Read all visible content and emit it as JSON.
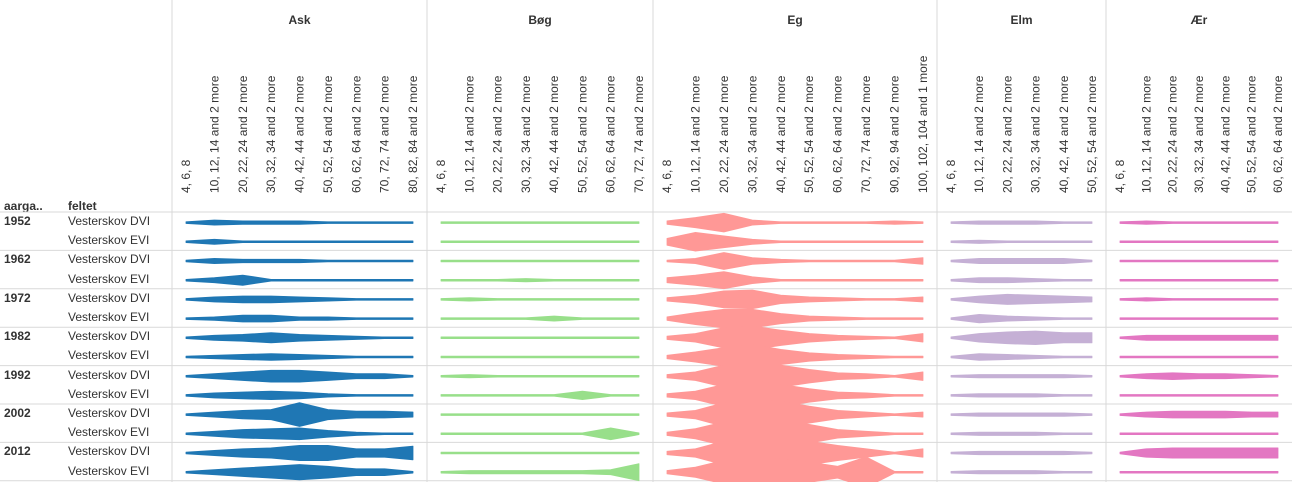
{
  "row_headers": {
    "year_label": "aarga..",
    "field_label": "feltet"
  },
  "colors": {
    "Ask": "#1f77b4",
    "Bøg": "#98df8a",
    "Eg": "#ff9896",
    "Elm": "#c5b0d5",
    "Ær": "#e377c2",
    "grid": "#d9d9d9"
  },
  "chart_data": {
    "type": "area",
    "species": [
      {
        "name": "Ask",
        "classes": [
          "4, 6, 8",
          "10, 12, 14 and 2 more",
          "20, 22, 24 and 2 more",
          "30, 32, 34 and 2 more",
          "40, 42, 44 and 2 more",
          "50, 52, 54 and 2 more",
          "60, 62, 64 and 2 more",
          "70, 72, 74 and 2 more",
          "80, 82, 84 and 2 more"
        ]
      },
      {
        "name": "Bøg",
        "classes": [
          "4, 6, 8",
          "10, 12, 14 and 2 more",
          "20, 22, 24 and 2 more",
          "30, 32, 34 and 2 more",
          "40, 42, 44 and 2 more",
          "50, 52, 54 and 2 more",
          "60, 62, 64 and 2 more",
          "70, 72, 74 and 2 more"
        ]
      },
      {
        "name": "Eg",
        "classes": [
          "4, 6, 8",
          "10, 12, 14 and 2 more",
          "20, 22, 24 and 2 more",
          "30, 32, 34 and 2 more",
          "40, 42, 44 and 2 more",
          "50, 52, 54 and 2 more",
          "60, 62, 64 and 2 more",
          "70, 72, 74 and 2 more",
          "90, 92, 94 and 2 more",
          "100, 102, 104 and 1 more"
        ]
      },
      {
        "name": "Elm",
        "classes": [
          "4, 6, 8",
          "10, 12, 14 and 2 more",
          "20, 22, 24 and 2 more",
          "30, 32, 34 and 2 more",
          "40, 42, 44 and 2 more",
          "50, 52, 54 and 2 more"
        ]
      },
      {
        "name": "Ær",
        "classes": [
          "4, 6, 8",
          "10, 12, 14 and 2 more",
          "20, 22, 24 and 2 more",
          "30, 32, 34 and 2 more",
          "40, 42, 44 and 2 more",
          "50, 52, 54 and 2 more",
          "60, 62, 64 and 2 more"
        ]
      }
    ],
    "years": [
      "1952",
      "1962",
      "1972",
      "1982",
      "1992",
      "2002",
      "2012"
    ],
    "fields": [
      "Vesterskov DVI",
      "Vesterskov EVI"
    ],
    "values": {
      "Ask": [
        [
          [
            1,
            3,
            2,
            2,
            2,
            1,
            1,
            1,
            1
          ],
          [
            1,
            3,
            1,
            1,
            1,
            1,
            1,
            1,
            1
          ]
        ],
        [
          [
            1,
            3,
            2,
            2,
            2,
            1,
            1,
            1,
            1
          ],
          [
            1,
            3,
            6,
            1,
            1,
            1,
            1,
            1,
            1
          ]
        ],
        [
          [
            1,
            3,
            4,
            4,
            3,
            2,
            1,
            1,
            1
          ],
          [
            1,
            2,
            4,
            4,
            2,
            2,
            1,
            1,
            1
          ]
        ],
        [
          [
            1,
            3,
            4,
            6,
            4,
            3,
            2,
            1,
            1
          ],
          [
            1,
            2,
            3,
            4,
            3,
            2,
            1,
            1,
            1
          ]
        ],
        [
          [
            1,
            3,
            5,
            7,
            7,
            5,
            3,
            3,
            1
          ],
          [
            1,
            3,
            4,
            5,
            4,
            2,
            1,
            1,
            1
          ]
        ],
        [
          [
            1,
            3,
            5,
            6,
            14,
            6,
            4,
            4,
            3
          ],
          [
            1,
            3,
            5,
            6,
            7,
            4,
            2,
            1,
            1
          ]
        ],
        [
          [
            1,
            3,
            5,
            6,
            9,
            9,
            5,
            5,
            8
          ],
          [
            1,
            3,
            5,
            7,
            9,
            7,
            4,
            4,
            1
          ]
        ]
      ],
      "Bøg": [
        [
          [
            1,
            1,
            1,
            1,
            1,
            1,
            1,
            1
          ],
          [
            1,
            1,
            1,
            1,
            1,
            1,
            1,
            1
          ]
        ],
        [
          [
            1,
            1,
            1,
            1,
            1,
            1,
            1,
            1
          ],
          [
            1,
            1,
            1,
            2,
            1,
            1,
            1,
            1
          ]
        ],
        [
          [
            1,
            2,
            1,
            1,
            1,
            1,
            1,
            1
          ],
          [
            1,
            1,
            1,
            1,
            3,
            1,
            1,
            1
          ]
        ],
        [
          [
            1,
            1,
            1,
            1,
            1,
            1,
            1,
            1
          ],
          [
            1,
            1,
            1,
            1,
            1,
            1,
            1,
            1
          ]
        ],
        [
          [
            1,
            2,
            1,
            1,
            1,
            1,
            1,
            1
          ],
          [
            1,
            1,
            1,
            1,
            1,
            5,
            1,
            1
          ]
        ],
        [
          [
            1,
            1,
            1,
            1,
            1,
            1,
            1,
            1
          ],
          [
            1,
            1,
            1,
            1,
            1,
            1,
            7,
            1
          ]
        ],
        [
          [
            1,
            1,
            1,
            1,
            1,
            1,
            1,
            1
          ],
          [
            1,
            2,
            2,
            2,
            2,
            2,
            3,
            10
          ]
        ]
      ],
      "Eg": [
        [
          [
            2,
            6,
            11,
            3,
            1,
            1,
            1,
            1,
            2,
            1
          ],
          [
            4,
            11,
            7,
            3,
            1,
            1,
            1,
            1,
            1,
            1
          ]
        ],
        [
          [
            1,
            3,
            10,
            4,
            2,
            1,
            1,
            1,
            1,
            4
          ],
          [
            3,
            6,
            10,
            4,
            1,
            1,
            1,
            1,
            1,
            1
          ]
        ],
        [
          [
            2,
            5,
            10,
            11,
            5,
            3,
            2,
            1,
            1,
            3
          ],
          [
            2,
            7,
            11,
            11,
            6,
            3,
            2,
            1,
            1,
            1
          ]
        ],
        [
          [
            2,
            5,
            12,
            14,
            9,
            5,
            3,
            2,
            1,
            5
          ],
          [
            2,
            6,
            11,
            15,
            9,
            5,
            3,
            2,
            1,
            1
          ]
        ],
        [
          [
            2,
            5,
            13,
            17,
            13,
            8,
            4,
            3,
            1,
            5
          ],
          [
            2,
            5,
            13,
            18,
            13,
            8,
            4,
            3,
            1,
            1
          ]
        ],
        [
          [
            2,
            5,
            14,
            18,
            16,
            10,
            5,
            3,
            1,
            3
          ],
          [
            2,
            6,
            14,
            18,
            16,
            11,
            5,
            3,
            1,
            1
          ]
        ],
        [
          [
            2,
            5,
            14,
            17,
            17,
            14,
            9,
            5,
            1,
            5
          ],
          [
            2,
            6,
            14,
            17,
            16,
            12,
            7,
            18,
            1,
            1
          ]
        ]
      ],
      "Elm": [
        [
          [
            1,
            2,
            2,
            2,
            1,
            1
          ],
          [
            1,
            2,
            1,
            1,
            1,
            1
          ]
        ],
        [
          [
            1,
            3,
            3,
            3,
            3,
            1
          ],
          [
            1,
            3,
            3,
            2,
            1,
            1
          ]
        ],
        [
          [
            1,
            4,
            6,
            5,
            4,
            3
          ],
          [
            1,
            5,
            3,
            2,
            1,
            1
          ]
        ],
        [
          [
            1,
            5,
            7,
            8,
            6,
            6
          ],
          [
            1,
            4,
            3,
            2,
            1,
            1
          ]
        ],
        [
          [
            1,
            2,
            2,
            2,
            2,
            1
          ],
          [
            1,
            2,
            2,
            2,
            1,
            1
          ]
        ],
        [
          [
            1,
            2,
            2,
            2,
            2,
            1
          ],
          [
            1,
            2,
            2,
            2,
            1,
            1
          ]
        ],
        [
          [
            1,
            2,
            2,
            2,
            2,
            1
          ],
          [
            1,
            2,
            2,
            2,
            1,
            1
          ]
        ]
      ],
      "Ær": [
        [
          [
            1,
            2,
            1,
            1,
            1,
            1,
            1
          ],
          [
            1,
            1,
            1,
            1,
            1,
            1,
            1
          ]
        ],
        [
          [
            1,
            1,
            1,
            1,
            1,
            1,
            1
          ],
          [
            1,
            1,
            1,
            1,
            1,
            1,
            1
          ]
        ],
        [
          [
            1,
            2,
            1,
            1,
            1,
            1,
            1
          ],
          [
            1,
            1,
            1,
            1,
            1,
            1,
            1
          ]
        ],
        [
          [
            1,
            3,
            3,
            3,
            3,
            3,
            3
          ],
          [
            1,
            1,
            1,
            1,
            1,
            1,
            1
          ]
        ],
        [
          [
            1,
            3,
            4,
            3,
            3,
            2,
            1
          ],
          [
            1,
            1,
            1,
            1,
            1,
            1,
            1
          ]
        ],
        [
          [
            1,
            3,
            4,
            4,
            4,
            3,
            3
          ],
          [
            1,
            1,
            1,
            1,
            1,
            1,
            1
          ]
        ],
        [
          [
            1,
            5,
            6,
            6,
            6,
            6,
            6
          ],
          [
            1,
            1,
            1,
            1,
            1,
            1,
            1
          ]
        ]
      ]
    }
  }
}
